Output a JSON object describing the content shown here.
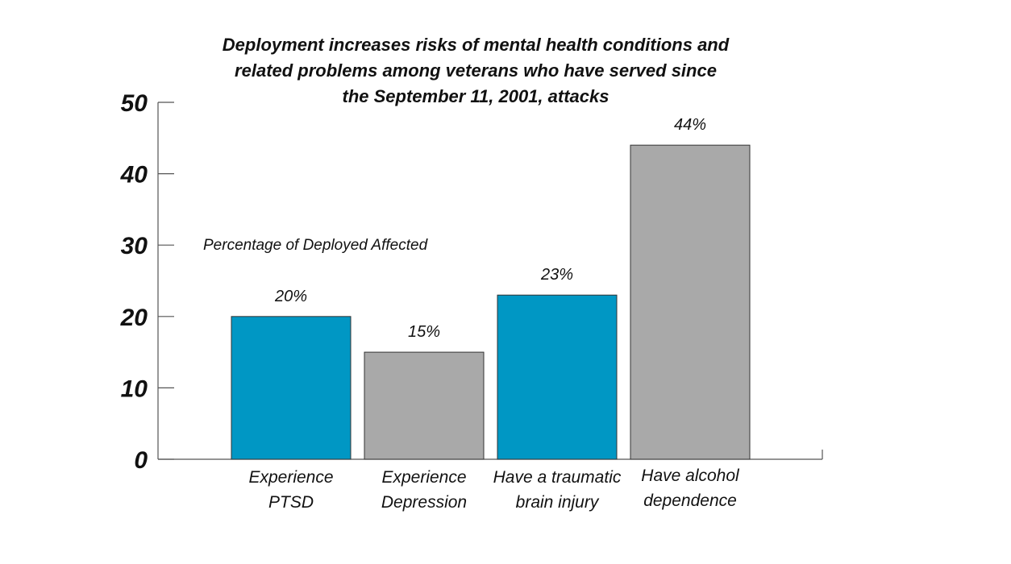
{
  "chart_data": {
    "type": "bar",
    "title_lines": [
      "Deployment increases risks of mental health conditions and",
      "related problems among veterans who have served since",
      "the September 11, 2001, attacks"
    ],
    "ylabel": "Percentage of Deployed Affected",
    "xlabel": "",
    "ylim": [
      0,
      50
    ],
    "yticks": [
      0,
      10,
      20,
      30,
      40,
      50
    ],
    "grid": false,
    "categories": [
      [
        "Experience",
        "PTSD"
      ],
      [
        "Experience",
        "Depression"
      ],
      [
        "Have a traumatic",
        "brain injury"
      ],
      [
        "Have alcohol",
        "dependence"
      ]
    ],
    "values": [
      20,
      15,
      23,
      44
    ],
    "value_labels": [
      "20%",
      "15%",
      "23%",
      "44%"
    ],
    "bar_colors": [
      "#0097c4",
      "#a9a9a9",
      "#0097c4",
      "#a9a9a9"
    ]
  }
}
